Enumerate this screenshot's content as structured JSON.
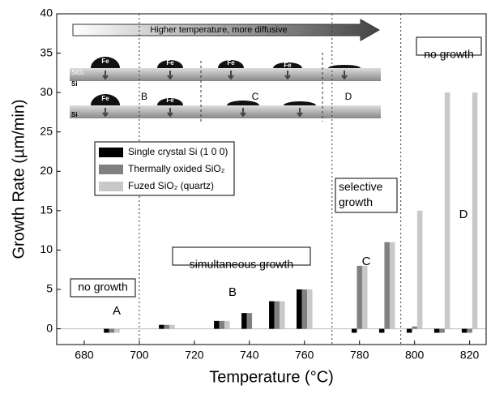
{
  "chart_data": {
    "type": "bar",
    "x_label": "Temperature (°C)",
    "y_label": "Growth Rate (µm/min)",
    "x": [
      690,
      710,
      730,
      740,
      750,
      760,
      780,
      790,
      800,
      810,
      820
    ],
    "series": [
      {
        "name": "Single crystal Si (1 0 0)",
        "color": "#000000",
        "values": [
          -0.5,
          0.5,
          1,
          2,
          3.5,
          5,
          -0.5,
          -0.5,
          -0.5,
          -0.5,
          -0.5
        ]
      },
      {
        "name": "Thermally oxided SiO₂",
        "color": "#808080",
        "values": [
          -0.5,
          0.5,
          1,
          2,
          3.5,
          5,
          8,
          11,
          0.3,
          -0.5,
          -0.5
        ]
      },
      {
        "name": "Fuzed SiO₂ (quartz)",
        "color": "#c8c8c8",
        "values": [
          -0.5,
          0.5,
          1,
          null,
          3.5,
          5,
          8,
          11,
          15,
          30,
          30
        ]
      }
    ],
    "xlim": [
      670,
      826
    ],
    "ylim": [
      -2,
      40
    ],
    "xticks": [
      680,
      700,
      720,
      740,
      760,
      780,
      800,
      820
    ],
    "yticks": [
      0,
      5,
      10,
      15,
      20,
      25,
      30,
      35,
      40
    ],
    "dividers": [
      700,
      770,
      795
    ],
    "annotations": [
      "no growth",
      "simultaneous growth",
      "selective growth",
      "no growth",
      "A",
      "B",
      "C",
      "D"
    ],
    "inset": {
      "arrow_text": "Higher temperature, more diffusive",
      "fe": "Fe",
      "sio2": "SiO₂",
      "si": "Si",
      "stages": [
        "B",
        "C",
        "D"
      ]
    }
  }
}
